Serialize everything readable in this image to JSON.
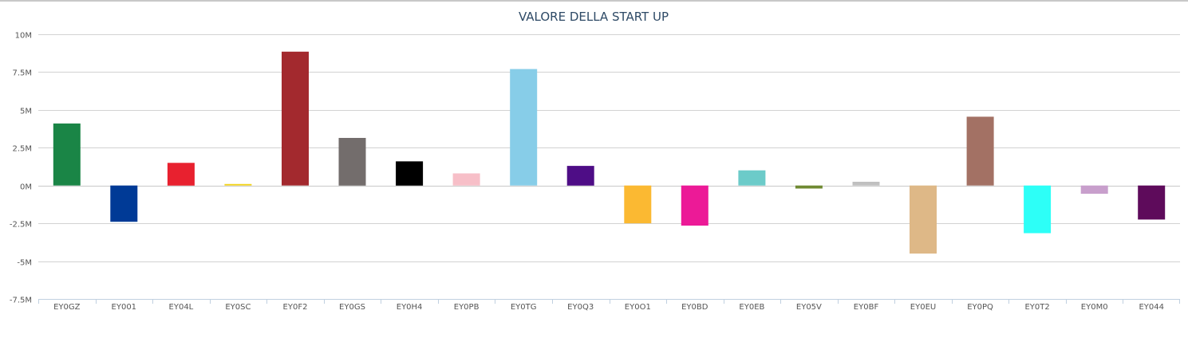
{
  "chart_data": {
    "type": "bar",
    "title": "VALORE DELLA START UP",
    "xlabel": "",
    "ylabel": "",
    "ylim": [
      -7500000,
      10000000
    ],
    "yticks": [
      {
        "value": 10000000,
        "label": "10M"
      },
      {
        "value": 7500000,
        "label": "7.5M"
      },
      {
        "value": 5000000,
        "label": "5M"
      },
      {
        "value": 2500000,
        "label": "2.5M"
      },
      {
        "value": 0,
        "label": "0M"
      },
      {
        "value": -2500000,
        "label": "-2.5M"
      },
      {
        "value": -5000000,
        "label": "-5M"
      },
      {
        "value": -7500000,
        "label": "-7.5M"
      }
    ],
    "grid": true,
    "legend": "none",
    "categories": [
      "EY0GZ",
      "EY001",
      "EY04L",
      "EY0SC",
      "EY0F2",
      "EY0GS",
      "EY0H4",
      "EY0PB",
      "EY0TG",
      "EY0Q3",
      "EY0O1",
      "EY0BD",
      "EY0EB",
      "EY05V",
      "EY0BF",
      "EY0EU",
      "EY0PQ",
      "EY0T2",
      "EY0M0",
      "EY044"
    ],
    "values": [
      4100000,
      -2400000,
      1500000,
      100000,
      8850000,
      3150000,
      1600000,
      800000,
      7700000,
      1300000,
      -2500000,
      -2650000,
      1000000,
      -200000,
      250000,
      -4500000,
      4550000,
      -3150000,
      -550000,
      -2250000
    ],
    "colors": [
      "#1a8546",
      "#003a96",
      "#e8212f",
      "#f2d31b",
      "#a3292e",
      "#736d6c",
      "#000000",
      "#f7bfc8",
      "#87cde8",
      "#4e0d86",
      "#fbb932",
      "#ec1a97",
      "#6ccbc9",
      "#6f8a32",
      "#c0c0c0",
      "#deb887",
      "#a37164",
      "#2dfff7",
      "#c89fcc",
      "#5e0b5b"
    ]
  }
}
